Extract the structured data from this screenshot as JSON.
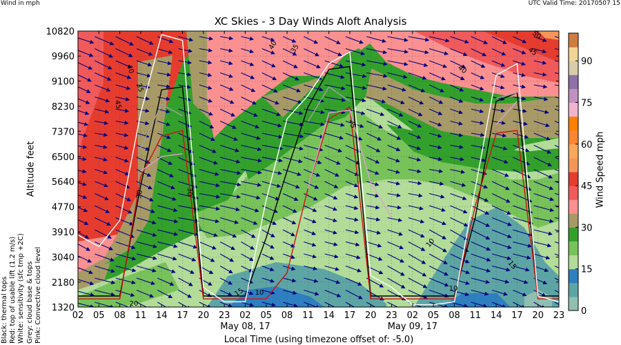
{
  "header": {
    "left_note": "Wind in mph",
    "right_note": "UTC Valid Time: 20170507 15"
  },
  "chart_data": {
    "type": "heatmap",
    "title": "XC Skies - 3 Day Winds Aloft Analysis",
    "ylabel": "Altitude feet",
    "xlabel": "Local Time (using timezone offset of: -5.0)",
    "colorbar_label": "Wind Speed mph",
    "y_ticks": [
      "1320",
      "2180",
      "3040",
      "3910",
      "4770",
      "5640",
      "6500",
      "7370",
      "8230",
      "9100",
      "9960",
      "10820"
    ],
    "x_ticks": [
      "02",
      "05",
      "08",
      "11",
      "14",
      "17",
      "20",
      "23",
      "02",
      "05",
      "08",
      "11",
      "14",
      "17",
      "20",
      "23",
      "02",
      "05",
      "08",
      "11",
      "14",
      "17",
      "20",
      "23"
    ],
    "date_labels": [
      {
        "text": "May 08, 17",
        "tick_index": 8
      },
      {
        "text": "May 09, 17",
        "tick_index": 16
      }
    ],
    "colorbar": {
      "ticks": [
        0,
        15,
        30,
        45,
        60,
        75,
        90
      ],
      "range": [
        0,
        100
      ],
      "levels": [
        {
          "from": 0,
          "to": 5,
          "color": "#8fbfb0"
        },
        {
          "from": 5,
          "to": 10,
          "color": "#5da5a4"
        },
        {
          "from": 10,
          "to": 15,
          "color": "#2e7fbf"
        },
        {
          "from": 15,
          "to": 20,
          "color": "#b2dc98"
        },
        {
          "from": 20,
          "to": 25,
          "color": "#78c25a"
        },
        {
          "from": 25,
          "to": 30,
          "color": "#33a02c"
        },
        {
          "from": 30,
          "to": 35,
          "color": "#a89a66"
        },
        {
          "from": 35,
          "to": 40,
          "color": "#fa9090"
        },
        {
          "from": 40,
          "to": 45,
          "color": "#f05a5a"
        },
        {
          "from": 45,
          "to": 50,
          "color": "#e63c2e"
        },
        {
          "from": 50,
          "to": 55,
          "color": "#f59659"
        },
        {
          "from": 55,
          "to": 60,
          "color": "#f7a85a"
        },
        {
          "from": 60,
          "to": 65,
          "color": "#fb8532"
        },
        {
          "from": 65,
          "to": 70,
          "color": "#ff7f00"
        },
        {
          "from": 70,
          "to": 75,
          "color": "#f0b4ce"
        },
        {
          "from": 75,
          "to": 80,
          "color": "#c090c0"
        },
        {
          "from": 80,
          "to": 85,
          "color": "#9070a8"
        },
        {
          "from": 85,
          "to": 90,
          "color": "#d8ccaa"
        },
        {
          "from": 90,
          "to": 95,
          "color": "#f2d596"
        },
        {
          "from": 95,
          "to": 100,
          "color": "#d07c40"
        }
      ]
    },
    "contour_labels": [
      "40",
      "45",
      "35",
      "40",
      "35",
      "40",
      "50",
      "45",
      "30",
      "30",
      "25",
      "20",
      "15",
      "10",
      "10",
      "15",
      "10",
      "20",
      "35",
      "40",
      "45"
    ],
    "legend": [
      {
        "text": "Black: thermal tops",
        "color": "#000000"
      },
      {
        "text": "Red: top of usable lift (1.2 m/s)",
        "color": "#d01010"
      },
      {
        "text": "White: sensitivity (sfc tmp +2C)",
        "color": "#ffffff"
      },
      {
        "text": "Grey: cloud base & tops",
        "color": "#a0a0a0"
      },
      {
        "text": "Pink: Convective cloud level",
        "color": "#e0a0d0"
      }
    ],
    "series": [
      {
        "name": "Black: thermal tops",
        "color": "#000000",
        "x": [
          "02",
          "05",
          "08",
          "11",
          "14",
          "17",
          "20",
          "23",
          "02",
          "05",
          "08",
          "11",
          "14",
          "17",
          "20",
          "23",
          "02",
          "05",
          "08",
          "11",
          "14",
          "17",
          "20",
          "23"
        ],
        "values": [
          1700,
          1700,
          1700,
          5500,
          8800,
          8900,
          1700,
          1700,
          1700,
          3700,
          6000,
          8200,
          9500,
          9600,
          1700,
          1700,
          1700,
          1700,
          1700,
          4400,
          8400,
          8700,
          1700,
          1700
        ]
      },
      {
        "name": "Red: top of usable lift (1.2 m/s)",
        "color": "#d01010",
        "x": [
          "02",
          "05",
          "08",
          "11",
          "14",
          "17",
          "20",
          "23",
          "02",
          "05",
          "08",
          "11",
          "14",
          "17",
          "20",
          "23",
          "02",
          "05",
          "08",
          "11",
          "14",
          "17",
          "20",
          "23"
        ],
        "values": [
          1600,
          1600,
          1600,
          5800,
          7200,
          7400,
          1600,
          1600,
          1600,
          1600,
          2500,
          5400,
          7800,
          8200,
          1600,
          1600,
          1600,
          1600,
          1600,
          4800,
          7300,
          7400,
          1600,
          1600
        ]
      },
      {
        "name": "White: sensitivity (sfc tmp +2C)",
        "color": "#ffffff",
        "x": [
          "02",
          "05",
          "08",
          "11",
          "14",
          "17",
          "20",
          "23",
          "02",
          "05",
          "08",
          "11",
          "14",
          "17",
          "20",
          "23",
          "02",
          "05",
          "08",
          "11",
          "14",
          "17",
          "20",
          "23"
        ],
        "values": [
          3800,
          3400,
          4300,
          8000,
          10700,
          10500,
          2000,
          1500,
          1500,
          5000,
          7800,
          8600,
          9700,
          10100,
          2400,
          2000,
          1400,
          1400,
          1500,
          5400,
          9300,
          9700,
          1700,
          1500
        ]
      },
      {
        "name": "Grey: cloud base & tops",
        "color": "#a0a0a0",
        "x": [
          "02",
          "05",
          "08",
          "11",
          "14",
          "17",
          "20",
          "23",
          "02",
          "05",
          "08",
          "11",
          "14",
          "17",
          "20",
          "23",
          "02",
          "05",
          "08",
          "11",
          "14",
          "17",
          "20",
          "23"
        ],
        "values": [
          null,
          null,
          null,
          6800,
          8300,
          7900,
          null,
          null,
          null,
          null,
          null,
          7700,
          8900,
          8400,
          null,
          null,
          null,
          null,
          null,
          null,
          8500,
          8700,
          null,
          null
        ]
      },
      {
        "name": "Pink: Convective cloud level",
        "color": "#e0a0d0",
        "x": [
          "02",
          "05",
          "08",
          "11",
          "14",
          "17",
          "20",
          "23",
          "02",
          "05",
          "08",
          "11",
          "14",
          "17",
          "20",
          "23",
          "02",
          "05",
          "08",
          "11",
          "14",
          "17",
          "20",
          "23"
        ],
        "values": [
          null,
          null,
          null,
          6000,
          6500,
          6600,
          null,
          null,
          null,
          null,
          null,
          5400,
          8000,
          8100,
          5600,
          4400,
          null,
          null,
          null,
          null,
          7600,
          8400,
          null,
          null
        ]
      }
    ]
  }
}
